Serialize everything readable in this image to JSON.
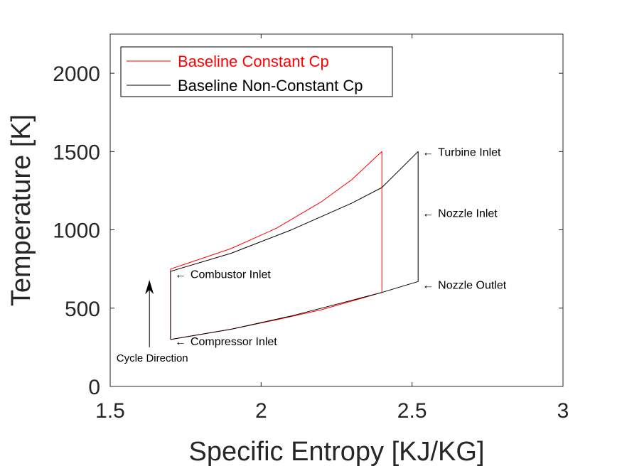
{
  "chart_data": {
    "type": "line",
    "title": "",
    "xlabel": "Specific Entropy [KJ/KG]",
    "ylabel": "Temperature [K]",
    "xlim": [
      1.5,
      3
    ],
    "ylim": [
      0,
      2250
    ],
    "xticks": [
      1.5,
      2,
      2.5,
      3
    ],
    "xtick_labels": [
      "1.5",
      "2",
      "2.5",
      "3"
    ],
    "yticks": [
      0,
      500,
      1000,
      1500,
      2000
    ],
    "ytick_labels": [
      "0",
      "500",
      "1000",
      "1500",
      "2000"
    ],
    "grid": false,
    "legend_position": "top-left",
    "series": [
      {
        "name": "Baseline Constant Cp",
        "color": "#ff0000",
        "x": [
          1.7,
          1.7,
          1.9,
          2.05,
          2.2,
          2.3,
          2.4,
          2.4,
          2.3,
          2.2,
          2.05,
          1.9,
          1.7
        ],
        "y": [
          300,
          750,
          880,
          1010,
          1180,
          1320,
          1500,
          600,
          545,
          490,
          425,
          365,
          300
        ]
      },
      {
        "name": "Baseline Non-Constant Cp",
        "color": "#000000",
        "x": [
          1.7,
          1.7,
          1.9,
          2.1,
          2.3,
          2.4,
          2.52,
          2.52,
          2.4,
          2.3,
          2.1,
          1.9,
          1.7
        ],
        "y": [
          300,
          735,
          850,
          1000,
          1170,
          1270,
          1500,
          670,
          600,
          550,
          450,
          365,
          300
        ]
      }
    ],
    "annotations": [
      {
        "text": "Turbine Inlet",
        "x": 2.52,
        "y": 1500
      },
      {
        "text": "Nozzle Inlet",
        "x": 2.52,
        "y": 1110
      },
      {
        "text": "Nozzle Outlet",
        "x": 2.52,
        "y": 650
      },
      {
        "text": "Combustor Inlet",
        "x": 1.7,
        "y": 720
      },
      {
        "text": "Compressor Inlet",
        "x": 1.7,
        "y": 290
      }
    ],
    "cycle_arrow": {
      "text": "Cycle Direction",
      "x": 1.63,
      "y_from": 250,
      "y_to": 680
    }
  }
}
